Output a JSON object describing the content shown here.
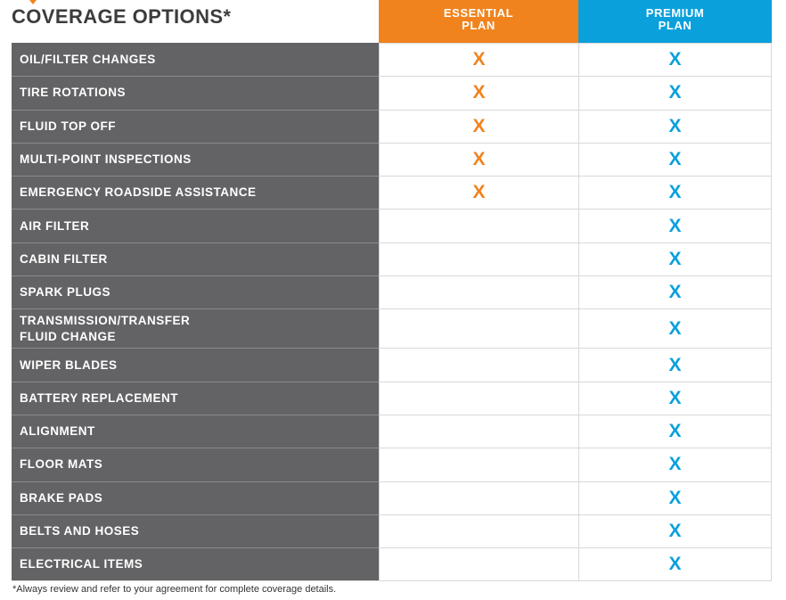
{
  "title": "COVERAGE OPTIONS*",
  "plans": [
    {
      "line1": "ESSENTIAL",
      "line2": "PLAN",
      "color": "#f0831e"
    },
    {
      "line1": "PREMIUM",
      "line2": "PLAN",
      "color": "#0aa0dc"
    }
  ],
  "mark_glyph": "X",
  "rows": [
    {
      "label": "OIL/FILTER CHANGES",
      "essential": true,
      "premium": true
    },
    {
      "label": "TIRE ROTATIONS",
      "essential": true,
      "premium": true
    },
    {
      "label": "FLUID TOP OFF",
      "essential": true,
      "premium": true
    },
    {
      "label": "MULTI-POINT INSPECTIONS",
      "essential": true,
      "premium": true
    },
    {
      "label": "EMERGENCY ROADSIDE ASSISTANCE",
      "essential": true,
      "premium": true
    },
    {
      "label": "AIR FILTER",
      "essential": false,
      "premium": true
    },
    {
      "label": "CABIN FILTER",
      "essential": false,
      "premium": true
    },
    {
      "label": "SPARK PLUGS",
      "essential": false,
      "premium": true
    },
    {
      "label": "TRANSMISSION/TRANSFER\nFLUID CHANGE",
      "essential": false,
      "premium": true,
      "tall": true
    },
    {
      "label": "WIPER BLADES",
      "essential": false,
      "premium": true
    },
    {
      "label": "BATTERY REPLACEMENT",
      "essential": false,
      "premium": true
    },
    {
      "label": "ALIGNMENT",
      "essential": false,
      "premium": true
    },
    {
      "label": "FLOOR MATS",
      "essential": false,
      "premium": true
    },
    {
      "label": "BRAKE PADS",
      "essential": false,
      "premium": true
    },
    {
      "label": "BELTS AND HOSES",
      "essential": false,
      "premium": true
    },
    {
      "label": "ELECTRICAL ITEMS",
      "essential": false,
      "premium": true
    }
  ],
  "footnote": "*Always review and refer to your agreement for complete coverage details."
}
